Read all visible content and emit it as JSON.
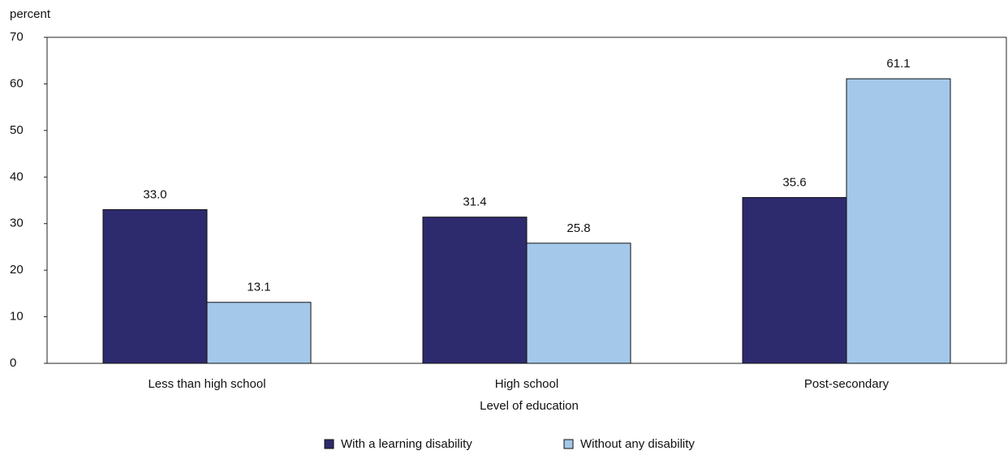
{
  "chart_data": {
    "type": "bar",
    "y_axis_label": "percent",
    "x_axis_label": "Level of education",
    "categories": [
      "Less than high school",
      "High school",
      "Post-secondary"
    ],
    "series": [
      {
        "name": "With a learning disability",
        "color": "#2e2a6e",
        "values": [
          33.0,
          31.4,
          35.6
        ],
        "value_labels": [
          "33.0",
          "31.4",
          "35.6"
        ]
      },
      {
        "name": "Without any disability",
        "color": "#a3c8ea",
        "values": [
          13.1,
          25.8,
          61.1
        ],
        "value_labels": [
          "13.1",
          "25.8",
          "61.1"
        ]
      }
    ],
    "ylim": [
      0,
      70
    ],
    "yticks": [
      0,
      10,
      20,
      30,
      40,
      50,
      60,
      70
    ],
    "legend": "bottom"
  }
}
